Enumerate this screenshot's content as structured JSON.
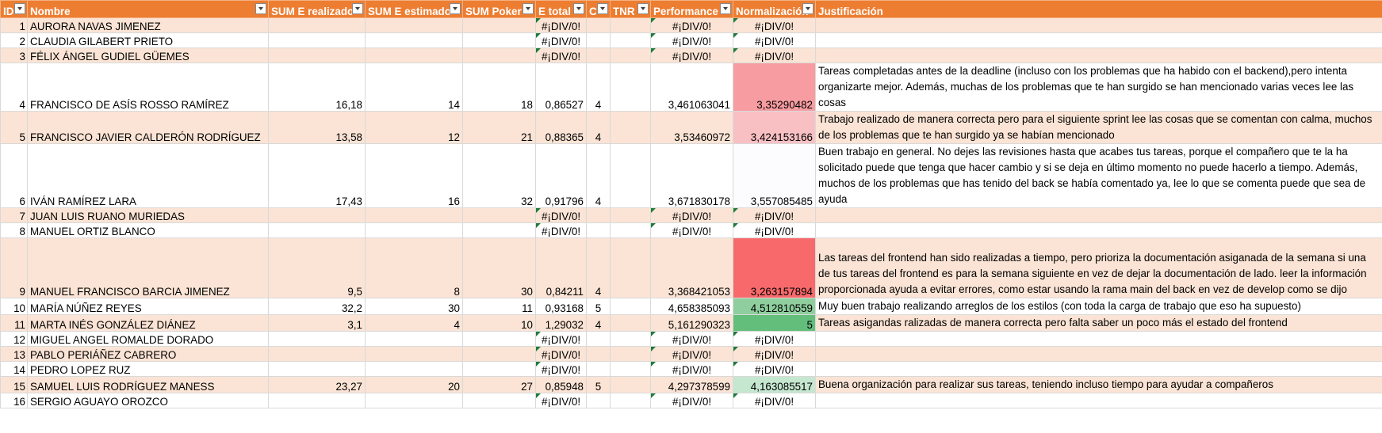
{
  "headers": [
    "ID",
    "Nombre",
    "SUM E realizado",
    "SUM E estimado",
    "SUM Poker",
    "E total",
    "C",
    "TNR",
    "Performance",
    "Normalización",
    "Justificación"
  ],
  "rows": [
    {
      "id": "1",
      "nombre": "AURORA NAVAS JIMENEZ",
      "e_realizado": "",
      "e_estimado": "",
      "poker": "",
      "e_total": "#¡DIV/0!",
      "c": "",
      "tnr": "",
      "performance": "#¡DIV/0!",
      "normalizacion": "#¡DIV/0!",
      "norm_color": "",
      "justificacion": ""
    },
    {
      "id": "2",
      "nombre": "CLAUDIA GILABERT PRIETO",
      "e_realizado": "",
      "e_estimado": "",
      "poker": "",
      "e_total": "#¡DIV/0!",
      "c": "",
      "tnr": "",
      "performance": "#¡DIV/0!",
      "normalizacion": "#¡DIV/0!",
      "norm_color": "",
      "justificacion": ""
    },
    {
      "id": "3",
      "nombre": "FÉLIX ÁNGEL GUDIEL GÜEMES",
      "e_realizado": "",
      "e_estimado": "",
      "poker": "",
      "e_total": "#¡DIV/0!",
      "c": "",
      "tnr": "",
      "performance": "#¡DIV/0!",
      "normalizacion": "#¡DIV/0!",
      "norm_color": "",
      "justificacion": ""
    },
    {
      "id": "4",
      "nombre": "FRANCISCO DE ASÍS ROSSO RAMÍREZ",
      "e_realizado": "16,18",
      "e_estimado": "14",
      "poker": "18",
      "e_total": "0,86527",
      "c": "4",
      "tnr": "",
      "performance": "3,461063041",
      "normalizacion": "3,35290482",
      "norm_color": "#f79ca1",
      "justificacion": "Tareas completadas antes de la deadline (incluso con los problemas que ha habido con el backend),pero intenta organizarte mejor. Además, muchas de los problemas que te han surgido se han mencionado varias veces lee las cosas"
    },
    {
      "id": "5",
      "nombre": "FRANCISCO JAVIER CALDERÓN RODRÍGUEZ",
      "e_realizado": "13,58",
      "e_estimado": "12",
      "poker": "21",
      "e_total": "0,88365",
      "c": "4",
      "tnr": "",
      "performance": "3,53460972",
      "normalizacion": "3,424153166",
      "norm_color": "#f9c0c4",
      "justificacion": "Trabajo realizado de manera correcta pero para el siguiente sprint lee las cosas que se comentan con calma, muchos de los problemas que te han surgido ya se habían mencionado"
    },
    {
      "id": "6",
      "nombre": "IVÁN RAMÍREZ LARA",
      "e_realizado": "17,43",
      "e_estimado": "16",
      "poker": "32",
      "e_total": "0,91796",
      "c": "4",
      "tnr": "",
      "performance": "3,671830178",
      "normalizacion": "3,557085485",
      "norm_color": "#fcfcff",
      "justificacion": "Buen trabajo en general. No dejes las revisiones hasta que acabes tus tareas, porque el compañero que te la ha solicitado puede que tenga que hacer cambio y si se deja en último momento no puede hacerlo a tiempo. Además, muchos de los problemas que has tenido del back se había comentado ya, lee lo que se comenta puede que sea de ayuda"
    },
    {
      "id": "7",
      "nombre": "JUAN LUIS RUANO MURIEDAS",
      "e_realizado": "",
      "e_estimado": "",
      "poker": "",
      "e_total": "#¡DIV/0!",
      "c": "",
      "tnr": "",
      "performance": "#¡DIV/0!",
      "normalizacion": "#¡DIV/0!",
      "norm_color": "",
      "justificacion": ""
    },
    {
      "id": "8",
      "nombre": "MANUEL ORTIZ BLANCO",
      "e_realizado": "",
      "e_estimado": "",
      "poker": "",
      "e_total": "#¡DIV/0!",
      "c": "",
      "tnr": "",
      "performance": "#¡DIV/0!",
      "normalizacion": "#¡DIV/0!",
      "norm_color": "",
      "justificacion": ""
    },
    {
      "id": "9",
      "nombre": "MANUEL FRANCISCO BARCIA JIMENEZ",
      "e_realizado": "9,5",
      "e_estimado": "8",
      "poker": "30",
      "e_total": "0,84211",
      "c": "4",
      "tnr": "",
      "performance": "3,368421053",
      "normalizacion": "3,263157894",
      "norm_color": "#f8696b",
      "justificacion": "Las tareas del frontend han sido realizadas a tiempo, pero prioriza la documentación asiganada de la semana si una de tus tareas del frontend es para la semana siguiente en vez de dejar la documentación de lado. leer la información proporcionada ayuda a evitar errores, como estar usando la rama main del back en vez de develop como se dijo"
    },
    {
      "id": "10",
      "nombre": "MARÍA NÚÑEZ REYES",
      "e_realizado": "32,2",
      "e_estimado": "30",
      "poker": "11",
      "e_total": "0,93168",
      "c": "5",
      "tnr": "",
      "performance": "4,658385093",
      "normalizacion": "4,512810559",
      "norm_color": "#8fcf9e",
      "justificacion": "Muy buen trabajo realizando arreglos de los estilos (con toda la carga de trabajo que eso ha supuesto)"
    },
    {
      "id": "11",
      "nombre": "MARTA INÉS GONZÁLEZ DIÁNEZ",
      "e_realizado": "3,1",
      "e_estimado": "4",
      "poker": "10",
      "e_total": "1,29032",
      "c": "4",
      "tnr": "",
      "performance": "5,161290323",
      "normalizacion": "5",
      "norm_color": "#63be7b",
      "justificacion": "Tareas asigandas ralizadas de manera correcta pero falta saber un poco más el estado del frontend"
    },
    {
      "id": "12",
      "nombre": "MIGUEL ANGEL ROMALDE DORADO",
      "e_realizado": "",
      "e_estimado": "",
      "poker": "",
      "e_total": "#¡DIV/0!",
      "c": "",
      "tnr": "",
      "performance": "#¡DIV/0!",
      "normalizacion": "#¡DIV/0!",
      "norm_color": "",
      "justificacion": ""
    },
    {
      "id": "13",
      "nombre": "PABLO PERIÁÑEZ CABRERO",
      "e_realizado": "",
      "e_estimado": "",
      "poker": "",
      "e_total": "#¡DIV/0!",
      "c": "",
      "tnr": "",
      "performance": "#¡DIV/0!",
      "normalizacion": "#¡DIV/0!",
      "norm_color": "",
      "justificacion": ""
    },
    {
      "id": "14",
      "nombre": "PEDRO LOPEZ RUZ",
      "e_realizado": "",
      "e_estimado": "",
      "poker": "",
      "e_total": "#¡DIV/0!",
      "c": "",
      "tnr": "",
      "performance": "#¡DIV/0!",
      "normalizacion": "#¡DIV/0!",
      "norm_color": "",
      "justificacion": ""
    },
    {
      "id": "15",
      "nombre": "SAMUEL LUIS RODRÍGUEZ MANESS",
      "e_realizado": "23,27",
      "e_estimado": "20",
      "poker": "27",
      "e_total": "0,85948",
      "c": "5",
      "tnr": "",
      "performance": "4,297378599",
      "normalizacion": "4,163085517",
      "norm_color": "#c6e7cf",
      "justificacion": "Buena organización para realizar sus tareas, teniendo incluso tiempo para ayudar a compañeros"
    },
    {
      "id": "16",
      "nombre": "SERGIO AGUAYO OROZCO",
      "e_realizado": "",
      "e_estimado": "",
      "poker": "",
      "e_total": "#¡DIV/0!",
      "c": "",
      "tnr": "",
      "performance": "#¡DIV/0!",
      "normalizacion": "#¡DIV/0!",
      "norm_color": "",
      "justificacion": ""
    }
  ]
}
